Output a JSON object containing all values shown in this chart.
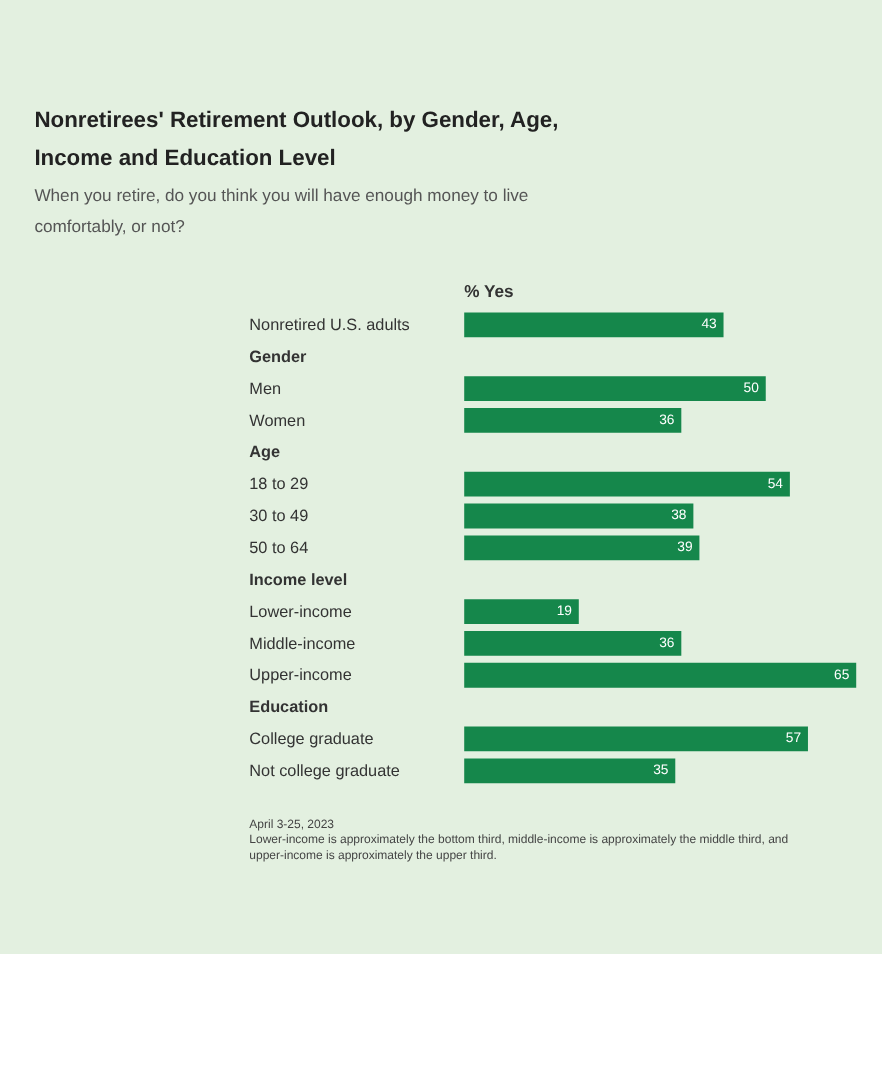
{
  "chart_data": {
    "type": "bar",
    "orientation": "horizontal",
    "title": "Nonretirees' Retirement Outlook, by Gender, Age, Income and Education Level",
    "subtitle": "When you retire, do you think you will have enough money to live comfortably, or not?",
    "xlabel": "% Yes",
    "categories": [
      "Nonretired U.S. adults",
      "Gender",
      "Men",
      "Women",
      "Age",
      "18 to 29",
      "30 to 49",
      "50 to 64",
      "Income level",
      "Lower-income",
      "Middle-income",
      "Upper-income",
      "Education",
      "College graduate",
      "Not college graduate"
    ],
    "values": [
      43,
      null,
      50,
      36,
      null,
      54,
      38,
      39,
      null,
      19,
      36,
      65,
      null,
      57,
      35
    ],
    "color": "#15874b",
    "data_labels": true,
    "annotations": [
      "April 3-25, 2023",
      "Lower-income is approximately the bottom third, middle-income is approximately the middle third, and upper-income is approximately the upper third."
    ]
  }
}
